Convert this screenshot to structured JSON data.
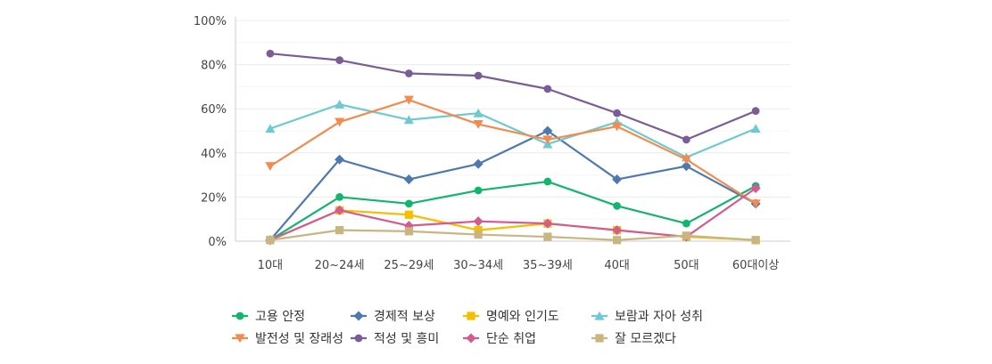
{
  "chart_data": {
    "type": "line",
    "categories": [
      "10대",
      "20~24세",
      "25~29세",
      "30~34세",
      "35~39세",
      "40대",
      "50대",
      "60대이상"
    ],
    "ylim": [
      0,
      100
    ],
    "y_ticks": [
      "0%",
      "20%",
      "40%",
      "60%",
      "80%",
      "100%"
    ],
    "grid": true,
    "legend_position": "bottom",
    "series": [
      {
        "name": "고용 안정",
        "color": "#11b56e",
        "marker": "circle",
        "values": [
          0.5,
          20,
          17,
          23,
          27,
          16,
          8,
          25
        ]
      },
      {
        "name": "경제적 보상",
        "color": "#4e79b0",
        "marker": "diamond",
        "values": [
          0.5,
          37,
          28,
          35,
          50,
          28,
          34,
          17
        ]
      },
      {
        "name": "명예와 인기도",
        "color": "#f5be00",
        "marker": "square",
        "values": [
          0.5,
          14,
          12,
          5,
          8,
          5,
          2,
          0.5
        ]
      },
      {
        "name": "보람과 자아 성취",
        "color": "#6ccad0",
        "marker": "triangle-up",
        "values": [
          51,
          62,
          55,
          58,
          44,
          54,
          38,
          51
        ]
      },
      {
        "name": "발전성 및 장래성",
        "color": "#f48b4e",
        "marker": "triangle-down",
        "values": [
          34,
          54,
          64,
          53,
          46,
          52,
          37,
          17
        ]
      },
      {
        "name": "적성 및 흥미",
        "color": "#7c5c97",
        "marker": "circle",
        "values": [
          85,
          82,
          76,
          75,
          69,
          58,
          46,
          59
        ]
      },
      {
        "name": "단순 취업",
        "color": "#d45a8f",
        "marker": "diamond",
        "values": [
          0.5,
          14,
          7,
          9,
          8,
          5,
          2,
          24
        ]
      },
      {
        "name": "잘 모르겠다",
        "color": "#c9b581",
        "marker": "square",
        "values": [
          0.5,
          5,
          4.5,
          3,
          2,
          0.5,
          2.5,
          0.5
        ]
      }
    ]
  }
}
